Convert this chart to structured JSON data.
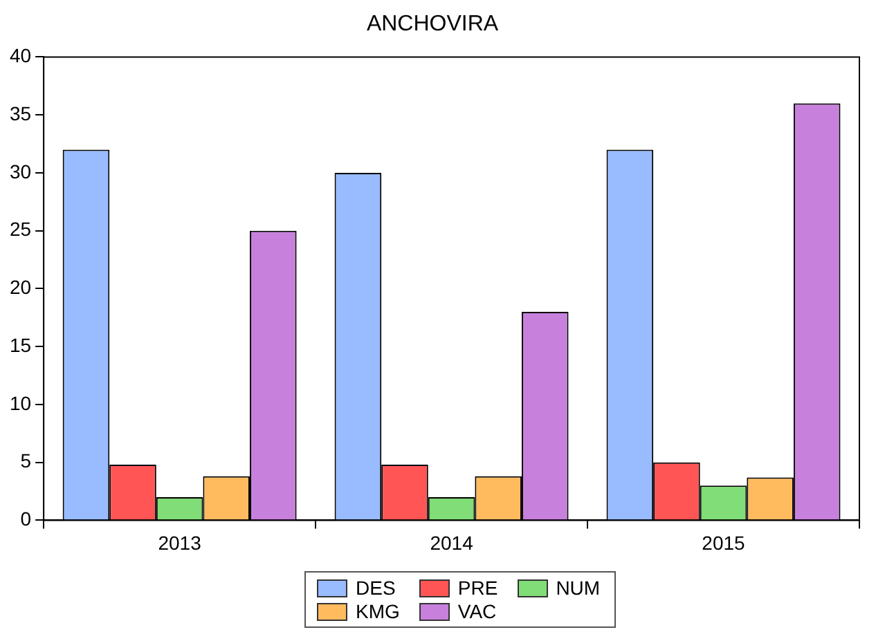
{
  "chart_data": {
    "type": "bar",
    "title": "ANCHOVIRA",
    "categories": [
      "2013",
      "2014",
      "2015"
    ],
    "series": [
      {
        "name": "DES",
        "color": "#99bbff",
        "values": [
          32,
          30,
          32
        ]
      },
      {
        "name": "PRE",
        "color": "#ff5555",
        "values": [
          4.8,
          4.8,
          5.0
        ]
      },
      {
        "name": "NUM",
        "color": "#80dd77",
        "values": [
          2,
          2,
          3
        ]
      },
      {
        "name": "KMG",
        "color": "#ffbb5e",
        "values": [
          3.8,
          3.8,
          3.7
        ]
      },
      {
        "name": "VAC",
        "color": "#c880dd",
        "values": [
          25,
          18,
          36
        ]
      }
    ],
    "ylim": [
      0,
      40
    ],
    "yticks": [
      0,
      5,
      10,
      15,
      20,
      25,
      30,
      35,
      40
    ],
    "grid": false,
    "legend": "bottom"
  }
}
